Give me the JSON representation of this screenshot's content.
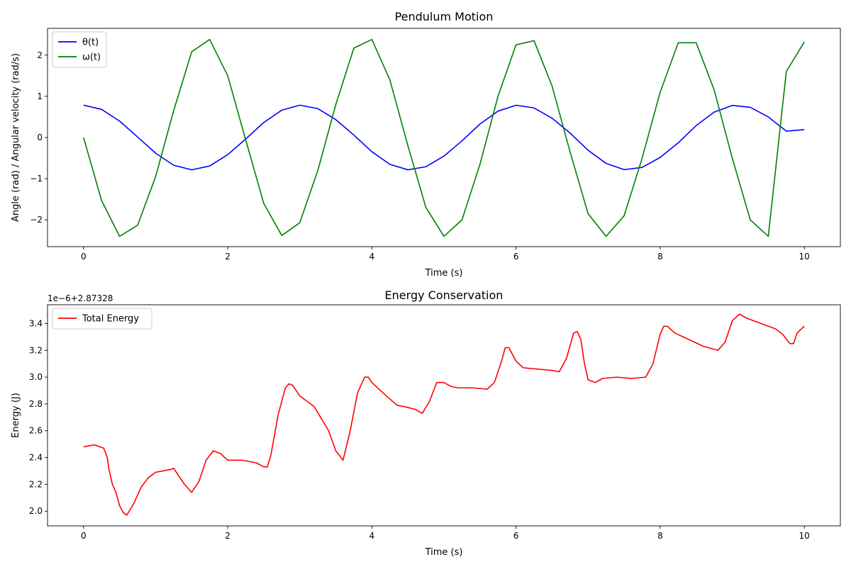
{
  "chart_data": [
    {
      "type": "line",
      "title": "Pendulum Motion",
      "xlabel": "Time (s)",
      "ylabel": "Angle (rad) / Angular velocity (rad/s)",
      "xlim": [
        -0.5,
        10.5
      ],
      "ylim": [
        -2.65,
        2.65
      ],
      "xticks": [
        0,
        2,
        4,
        6,
        8,
        10
      ],
      "xtick_labels": [
        "0",
        "2",
        "4",
        "6",
        "8",
        "10"
      ],
      "yticks": [
        -2,
        -1,
        0,
        1,
        2
      ],
      "ytick_labels": [
        "−2",
        "−1",
        "0",
        "1",
        "2"
      ],
      "grid": false,
      "legend_position": "top-left",
      "series": [
        {
          "name": "θ(t)",
          "color": "#0000ff",
          "x": [
            0,
            0.25,
            0.5,
            0.75,
            1.0,
            1.25,
            1.5,
            1.75,
            2.0,
            2.25,
            2.5,
            2.75,
            3.0,
            3.25,
            3.5,
            3.75,
            4.0,
            4.25,
            4.5,
            4.75,
            5.0,
            5.25,
            5.5,
            5.75,
            6.0,
            6.25,
            6.5,
            6.75,
            7.0,
            7.25,
            7.5,
            7.75,
            8.0,
            8.25,
            8.5,
            8.75,
            9.0,
            9.25,
            9.5,
            9.75,
            10.0
          ],
          "values": [
            0.785,
            0.683,
            0.398,
            0.012,
            -0.381,
            -0.673,
            -0.785,
            -0.692,
            -0.416,
            -0.036,
            0.363,
            0.663,
            0.785,
            0.701,
            0.433,
            0.059,
            -0.345,
            -0.652,
            -0.784,
            -0.71,
            -0.451,
            -0.083,
            0.327,
            0.64,
            0.783,
            0.718,
            0.468,
            0.107,
            -0.309,
            -0.629,
            -0.781,
            -0.726,
            -0.484,
            -0.13,
            0.29,
            0.617,
            0.779,
            0.733,
            0.5,
            0.154,
            0.19
          ]
        },
        {
          "name": "ω(t)",
          "color": "#008000",
          "x": [
            0,
            0.25,
            0.5,
            0.75,
            1.0,
            1.25,
            1.5,
            1.75,
            2.0,
            2.25,
            2.5,
            2.75,
            3.0,
            3.25,
            3.5,
            3.75,
            4.0,
            4.25,
            4.5,
            4.75,
            5.0,
            5.25,
            5.5,
            5.75,
            6.0,
            6.25,
            6.5,
            6.75,
            7.0,
            7.25,
            7.5,
            7.75,
            8.0,
            8.25,
            8.5,
            8.75,
            9.0,
            9.25,
            9.5,
            9.75,
            10.0
          ],
          "values": [
            0.0,
            -1.53,
            -2.4,
            -2.13,
            -0.95,
            0.65,
            2.08,
            2.38,
            1.5,
            -0.06,
            -1.6,
            -2.38,
            -2.07,
            -0.8,
            0.8,
            2.17,
            2.38,
            1.4,
            -0.2,
            -1.7,
            -2.4,
            -2.0,
            -0.65,
            1.0,
            2.25,
            2.35,
            1.25,
            -0.35,
            -1.85,
            -2.4,
            -1.9,
            -0.5,
            1.1,
            2.3,
            2.3,
            1.15,
            -0.5,
            -2.0,
            -2.4,
            1.6,
            2.32
          ]
        }
      ]
    },
    {
      "type": "line",
      "title": "Energy Conservation",
      "xlabel": "Time (s)",
      "ylabel": "Energy (J)",
      "offset_label": "1e−6+2.87328",
      "xlim": [
        -0.5,
        10.5
      ],
      "ylim": [
        1.89,
        3.54
      ],
      "xticks": [
        0,
        2,
        4,
        6,
        8,
        10
      ],
      "xtick_labels": [
        "0",
        "2",
        "4",
        "6",
        "8",
        "10"
      ],
      "yticks": [
        2.0,
        2.2,
        2.4,
        2.6,
        2.8,
        3.0,
        3.2,
        3.4
      ],
      "ytick_labels": [
        "2.0",
        "2.2",
        "2.4",
        "2.6",
        "2.8",
        "3.0",
        "3.2",
        "3.4"
      ],
      "grid": false,
      "legend_position": "top-left",
      "series": [
        {
          "name": "Total Energy",
          "color": "#ff0000",
          "x": [
            0,
            0.1,
            0.15,
            0.2,
            0.28,
            0.33,
            0.35,
            0.4,
            0.45,
            0.5,
            0.55,
            0.6,
            0.7,
            0.8,
            0.9,
            1.0,
            1.1,
            1.2,
            1.25,
            1.3,
            1.4,
            1.5,
            1.6,
            1.7,
            1.8,
            1.9,
            2.0,
            2.2,
            2.4,
            2.5,
            2.55,
            2.6,
            2.7,
            2.8,
            2.85,
            2.9,
            3.0,
            3.2,
            3.4,
            3.5,
            3.6,
            3.7,
            3.8,
            3.9,
            3.95,
            4.0,
            4.2,
            4.35,
            4.45,
            4.6,
            4.7,
            4.8,
            4.9,
            5.0,
            5.1,
            5.2,
            5.4,
            5.6,
            5.7,
            5.8,
            5.85,
            5.9,
            6.0,
            6.1,
            6.5,
            6.6,
            6.7,
            6.8,
            6.85,
            6.9,
            6.95,
            7.0,
            7.1,
            7.2,
            7.4,
            7.6,
            7.8,
            7.9,
            8.0,
            8.05,
            8.1,
            8.2,
            8.4,
            8.6,
            8.8,
            8.9,
            9.0,
            9.1,
            9.2,
            9.4,
            9.6,
            9.7,
            9.8,
            9.85,
            9.9,
            10.0
          ],
          "values": [
            2.48,
            2.49,
            2.495,
            2.485,
            2.47,
            2.4,
            2.32,
            2.2,
            2.14,
            2.04,
            1.99,
            1.97,
            2.06,
            2.18,
            2.25,
            2.29,
            2.3,
            2.31,
            2.32,
            2.28,
            2.2,
            2.14,
            2.22,
            2.38,
            2.45,
            2.43,
            2.38,
            2.38,
            2.36,
            2.33,
            2.33,
            2.42,
            2.72,
            2.92,
            2.95,
            2.94,
            2.86,
            2.78,
            2.6,
            2.45,
            2.38,
            2.6,
            2.88,
            3.0,
            3.0,
            2.96,
            2.86,
            2.79,
            2.78,
            2.76,
            2.73,
            2.82,
            2.96,
            2.96,
            2.93,
            2.92,
            2.92,
            2.91,
            2.96,
            3.12,
            3.22,
            3.22,
            3.12,
            3.07,
            3.05,
            3.04,
            3.14,
            3.33,
            3.34,
            3.28,
            3.1,
            2.98,
            2.96,
            2.99,
            3.0,
            2.99,
            3.0,
            3.1,
            3.32,
            3.38,
            3.38,
            3.33,
            3.28,
            3.23,
            3.2,
            3.26,
            3.42,
            3.47,
            3.44,
            3.4,
            3.36,
            3.32,
            3.25,
            3.25,
            3.33,
            3.38
          ]
        }
      ]
    }
  ]
}
